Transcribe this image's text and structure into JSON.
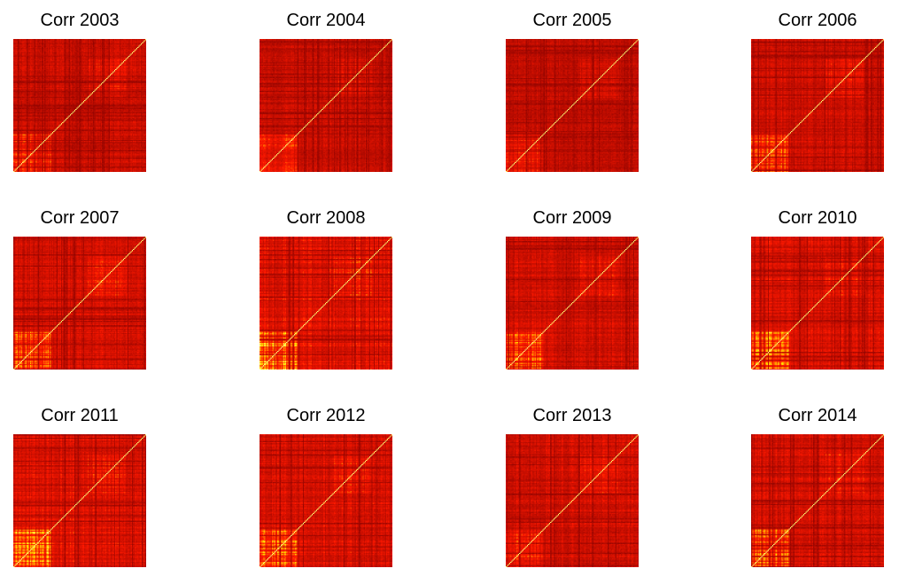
{
  "chart_data": [
    {
      "type": "heatmap",
      "title": "Corr 2003",
      "colormap": "heat (red-orange-yellow-white)",
      "diagonal": "white",
      "bright_block": "lower-left",
      "intensity": 0.3
    },
    {
      "type": "heatmap",
      "title": "Corr 2004",
      "colormap": "heat (red-orange-yellow-white)",
      "diagonal": "white",
      "bright_block": "lower-left",
      "intensity": 0.28
    },
    {
      "type": "heatmap",
      "title": "Corr 2005",
      "colormap": "heat (red-orange-yellow-white)",
      "diagonal": "white",
      "bright_block": "lower-left",
      "intensity": 0.2
    },
    {
      "type": "heatmap",
      "title": "Corr 2006",
      "colormap": "heat (red-orange-yellow-white)",
      "diagonal": "white",
      "bright_block": "lower-left",
      "intensity": 0.38
    },
    {
      "type": "heatmap",
      "title": "Corr 2007",
      "colormap": "heat (red-orange-yellow-white)",
      "diagonal": "white",
      "bright_block": "lower-left",
      "intensity": 0.46
    },
    {
      "type": "heatmap",
      "title": "Corr 2008",
      "colormap": "heat (red-orange-yellow-white)",
      "diagonal": "white",
      "bright_block": "lower-left",
      "intensity": 0.62
    },
    {
      "type": "heatmap",
      "title": "Corr 2009",
      "colormap": "heat (red-orange-yellow-white)",
      "diagonal": "white",
      "bright_block": "lower-left",
      "intensity": 0.42
    },
    {
      "type": "heatmap",
      "title": "Corr 2010",
      "colormap": "heat (red-orange-yellow-white)",
      "diagonal": "white",
      "bright_block": "lower-left",
      "intensity": 0.48
    },
    {
      "type": "heatmap",
      "title": "Corr 2011",
      "colormap": "heat (red-orange-yellow-white)",
      "diagonal": "white",
      "bright_block": "lower-left",
      "intensity": 0.55
    },
    {
      "type": "heatmap",
      "title": "Corr 2012",
      "colormap": "heat (red-orange-yellow-white)",
      "diagonal": "white",
      "bright_block": "lower-left",
      "intensity": 0.5
    },
    {
      "type": "heatmap",
      "title": "Corr 2013",
      "colormap": "heat (red-orange-yellow-white)",
      "diagonal": "white",
      "bright_block": "lower-left",
      "intensity": 0.4
    },
    {
      "type": "heatmap",
      "title": "Corr 2014",
      "colormap": "heat (red-orange-yellow-white)",
      "diagonal": "white",
      "bright_block": "lower-left",
      "intensity": 0.44
    }
  ]
}
